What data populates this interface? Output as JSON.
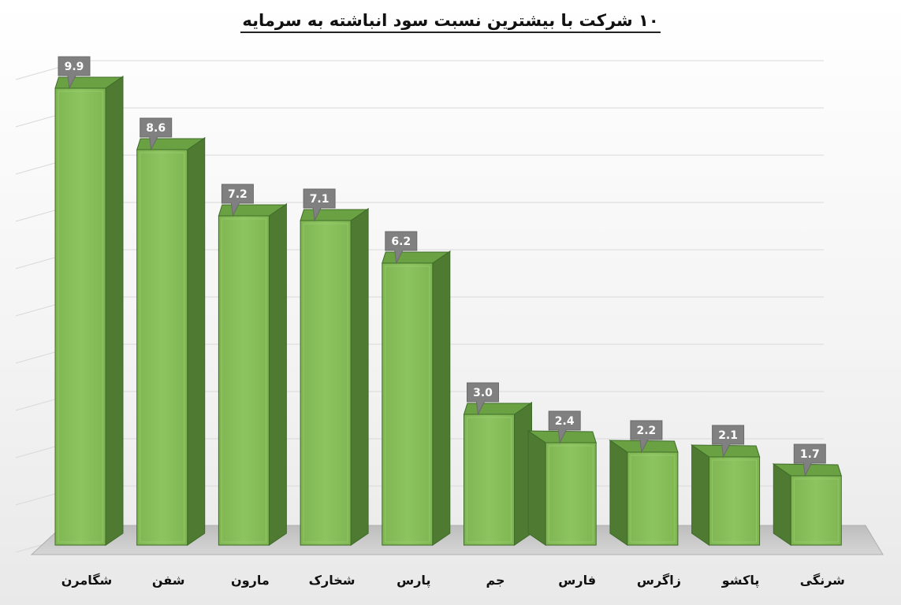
{
  "chart_data": {
    "type": "bar",
    "title": "۱۰ شرکت با بیشترین نسبت سود انباشته به سرمایه",
    "categories": [
      "شگامرن",
      "شفن",
      "مارون",
      "شخارک",
      "پارس",
      "جم",
      "فارس",
      "زاگرس",
      "پاکشو",
      "شرنگی"
    ],
    "values": [
      9.9,
      8.6,
      7.2,
      7.1,
      6.2,
      3.0,
      2.4,
      2.2,
      2.1,
      1.7
    ],
    "value_labels": [
      "9.9",
      "8.6",
      "7.2",
      "7.1",
      "6.2",
      "3.0",
      "2.4",
      "2.2",
      "2.1",
      "1.7"
    ],
    "xlabel": "",
    "ylabel": "",
    "ylim": [
      0,
      10
    ],
    "grid": true,
    "legend": "none",
    "style": "3d-bar",
    "colors": {
      "bar_front": "#86bf5a",
      "bar_side": "#4e7a32",
      "bar_top": "#6aa243",
      "bar_edge": "#3f6b2a",
      "label_bg": "#808080",
      "label_text": "#ffffff",
      "gridline": "#d9d9d9",
      "floor": "#c8c8c8"
    }
  }
}
